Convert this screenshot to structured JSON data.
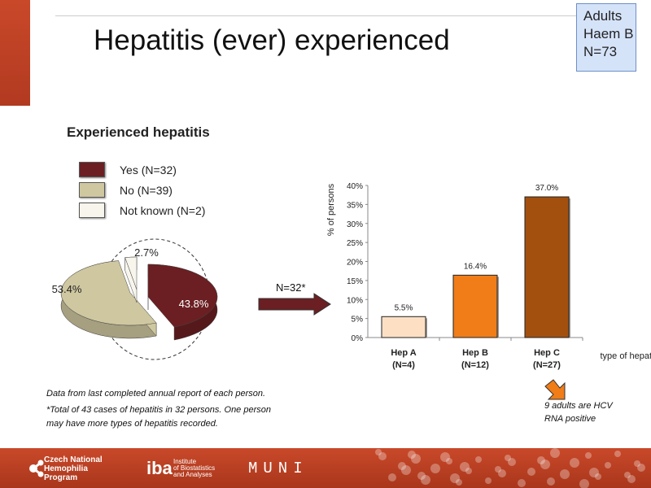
{
  "title": "Hepatitis (ever) experienced",
  "badge": {
    "line1": "Adults",
    "line2": "Haem B",
    "line3": "N=73"
  },
  "subtitle": "Experienced hepatitis",
  "legend": [
    {
      "label": "Yes (N=32)",
      "color": "#6b1f22"
    },
    {
      "label": "No (N=39)",
      "color": "#cfc7a0"
    },
    {
      "label": "Not known (N=2)",
      "color": "#f7f5ec"
    }
  ],
  "pie": {
    "slices": [
      {
        "name": "Yes",
        "value": 43.8,
        "label": "43.8%",
        "color": "#6b1f22"
      },
      {
        "name": "No",
        "value": 53.4,
        "label": "53.4%",
        "color": "#cfc7a0"
      },
      {
        "name": "Not known",
        "value": 2.7,
        "label": "2.7%",
        "color": "#f7f5ec"
      }
    ]
  },
  "arrow_label": "N=32*",
  "chart_data": {
    "type": "bar",
    "categories": [
      "Hep A\n(N=4)",
      "Hep B\n(N=12)",
      "Hep C\n(N=27)"
    ],
    "category_lines": [
      [
        "Hep A",
        "(N=4)"
      ],
      [
        "Hep B",
        "(N=12)"
      ],
      [
        "Hep C",
        "(N=27)"
      ]
    ],
    "values": [
      5.5,
      16.4,
      37.0
    ],
    "data_labels": [
      "5.5%",
      "16.4%",
      "37.0%"
    ],
    "colors": [
      "#fde0c4",
      "#f07d18",
      "#a3500f"
    ],
    "ylabel": "% of persons",
    "xlabel": "type of hepatitis",
    "ylim": [
      0,
      40
    ],
    "yticks": [
      "0%",
      "5%",
      "10%",
      "15%",
      "20%",
      "25%",
      "30%",
      "35%",
      "40%"
    ]
  },
  "notes": {
    "data_source": "Data from last completed annual report of each person.",
    "footnote1": "*Total of 43 cases of hepatitis in 32 persons. One person",
    "footnote2": "may have more types of hepatitis recorded.",
    "hcv1": "9 adults are HCV",
    "hcv2": "RNA positive"
  },
  "footer": {
    "cnhp": [
      "Czech National",
      "Hemophilia",
      "Program"
    ],
    "iba_logo": "iba",
    "iba": [
      "Institute",
      "of Biostatistics",
      "and Analyses"
    ],
    "muni": "MUNI"
  }
}
